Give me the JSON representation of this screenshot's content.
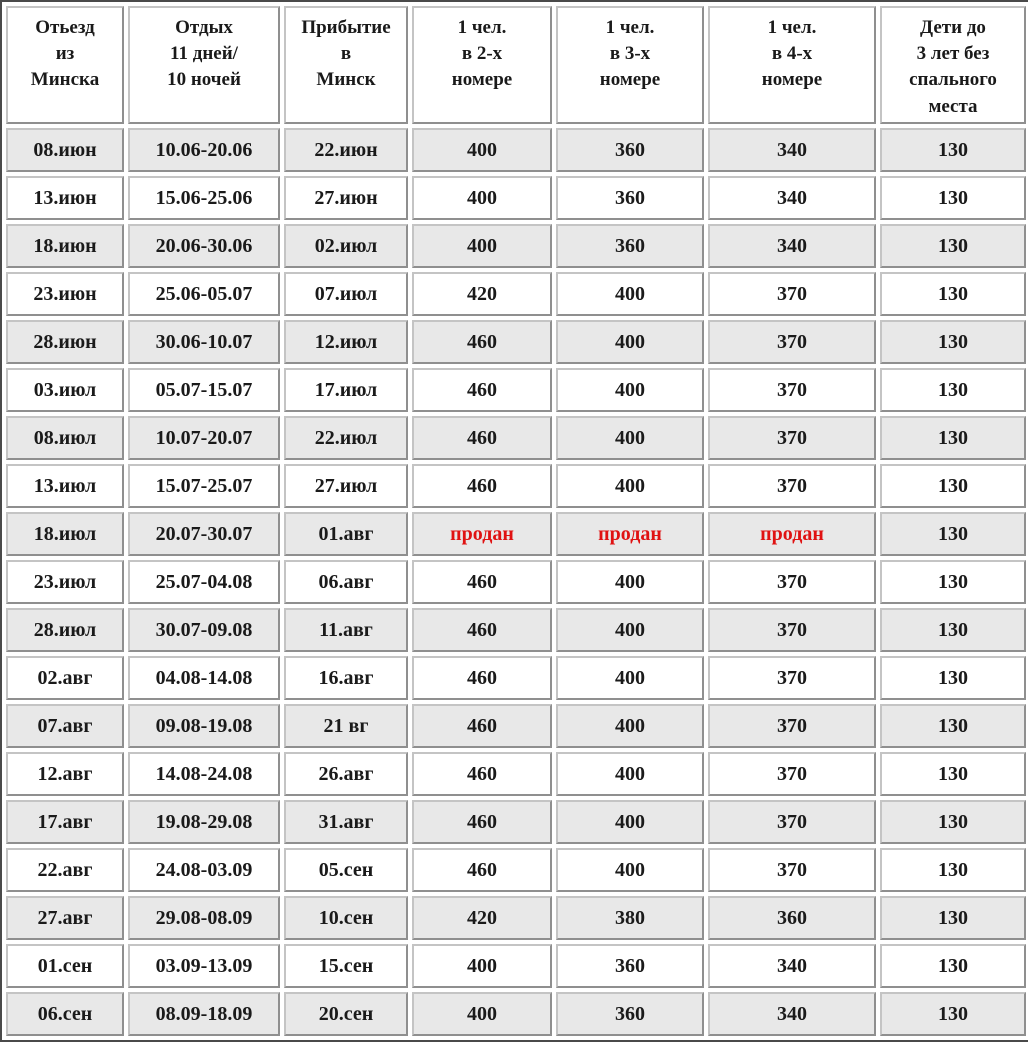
{
  "colors": {
    "row-shaded": "#e8e8e8",
    "sold-text": "#e01212",
    "outer-border": "#4a4a4a"
  },
  "table": {
    "sold_label": "продан",
    "columns": [
      "Отьезд\nиз\nМинска",
      "Отдых\n11 дней/\n10 ночей",
      "Прибытие\nв\nМинск",
      "1 чел.\nв 2-х\nномере",
      "1 чел.\nв 3-х\nномере",
      "1 чел.\nв 4-х\nномере",
      "Дети до\n3 лет без\nспального\nместа"
    ],
    "rows": [
      {
        "cells": [
          "08.июн",
          "10.06-20.06",
          "22.июн",
          "400",
          "360",
          "340",
          "130"
        ]
      },
      {
        "cells": [
          "13.июн",
          "15.06-25.06",
          "27.июн",
          "400",
          "360",
          "340",
          "130"
        ]
      },
      {
        "cells": [
          "18.июн",
          "20.06-30.06",
          "02.июл",
          "400",
          "360",
          "340",
          "130"
        ]
      },
      {
        "cells": [
          "23.июн",
          "25.06-05.07",
          "07.июл",
          "420",
          "400",
          "370",
          "130"
        ]
      },
      {
        "cells": [
          "28.июн",
          "30.06-10.07",
          "12.июл",
          "460",
          "400",
          "370",
          "130"
        ]
      },
      {
        "cells": [
          "03.июл",
          "05.07-15.07",
          "17.июл",
          "460",
          "400",
          "370",
          "130"
        ]
      },
      {
        "cells": [
          "08.июл",
          "10.07-20.07",
          "22.июл",
          "460",
          "400",
          "370",
          "130"
        ]
      },
      {
        "cells": [
          "13.июл",
          "15.07-25.07",
          "27.июл",
          "460",
          "400",
          "370",
          "130"
        ]
      },
      {
        "cells": [
          "18.июл",
          "20.07-30.07",
          "01.авг",
          "продан",
          "продан",
          "продан",
          "130"
        ]
      },
      {
        "cells": [
          "23.июл",
          "25.07-04.08",
          "06.авг",
          "460",
          "400",
          "370",
          "130"
        ]
      },
      {
        "cells": [
          "28.июл",
          "30.07-09.08",
          "11.авг",
          "460",
          "400",
          "370",
          "130"
        ]
      },
      {
        "cells": [
          "02.авг",
          "04.08-14.08",
          "16.авг",
          "460",
          "400",
          "370",
          "130"
        ]
      },
      {
        "cells": [
          "07.авг",
          "09.08-19.08",
          "21 вг",
          "460",
          "400",
          "370",
          "130"
        ]
      },
      {
        "cells": [
          "12.авг",
          "14.08-24.08",
          "26.авг",
          "460",
          "400",
          "370",
          "130"
        ]
      },
      {
        "cells": [
          "17.авг",
          "19.08-29.08",
          "31.авг",
          "460",
          "400",
          "370",
          "130"
        ]
      },
      {
        "cells": [
          "22.авг",
          "24.08-03.09",
          "05.сен",
          "460",
          "400",
          "370",
          "130"
        ]
      },
      {
        "cells": [
          "27.авг",
          "29.08-08.09",
          "10.сен",
          "420",
          "380",
          "360",
          "130"
        ]
      },
      {
        "cells": [
          "01.сен",
          "03.09-13.09",
          "15.сен",
          "400",
          "360",
          "340",
          "130"
        ]
      },
      {
        "cells": [
          "06.сен",
          "08.09-18.09",
          "20.сен",
          "400",
          "360",
          "340",
          "130"
        ]
      }
    ]
  }
}
